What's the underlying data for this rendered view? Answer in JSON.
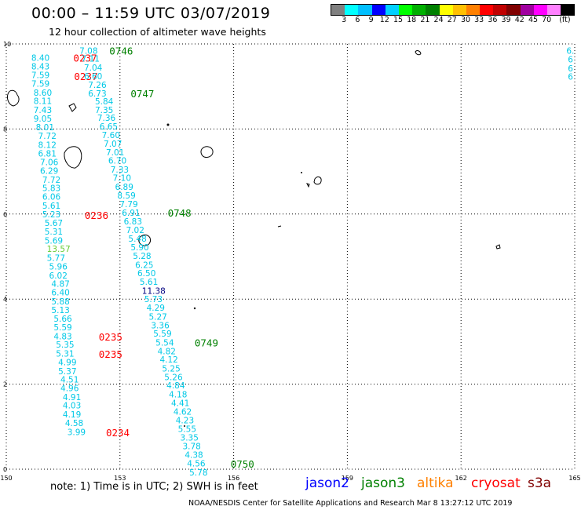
{
  "header": {
    "title": "00:00 – 11:59 UTC 03/07/2019",
    "subtitle": "12 hour collection of altimeter wave heights"
  },
  "legend": {
    "colors": [
      "#808080",
      "#00ffff",
      "#00bfff",
      "#0000ff",
      "#00d0ff",
      "#00ff00",
      "#00b000",
      "#008000",
      "#ffff00",
      "#ffc000",
      "#ff8000",
      "#ff0000",
      "#c00000",
      "#800000",
      "#a000a0",
      "#ff00ff",
      "#ff80ff",
      "#000000"
    ],
    "labels": [
      "3",
      "6",
      "9",
      "12",
      "15",
      "18",
      "21",
      "24",
      "27",
      "30",
      "33",
      "36",
      "39",
      "42",
      "45",
      "70",
      "(ft)"
    ]
  },
  "chart_data": {
    "type": "scatter",
    "xlim": [
      150,
      165
    ],
    "ylim": [
      0,
      10
    ],
    "x_ticks": [
      "150",
      "153",
      "156",
      "159",
      "162",
      "165"
    ],
    "y_ticks": [
      "0",
      "2",
      "4",
      "6",
      "8",
      "10"
    ],
    "grid": true,
    "tracks": [
      {
        "name": "track-a",
        "points": [
          {
            "x": 150.66,
            "y": 9.68,
            "v": "8.40"
          },
          {
            "x": 150.66,
            "y": 9.47,
            "v": "8.43"
          },
          {
            "x": 150.66,
            "y": 9.27,
            "v": "7.59"
          },
          {
            "x": 150.66,
            "y": 9.07,
            "v": "7.59"
          },
          {
            "x": 150.72,
            "y": 8.86,
            "v": "8.60"
          },
          {
            "x": 150.72,
            "y": 8.66,
            "v": "8.11"
          },
          {
            "x": 150.72,
            "y": 8.45,
            "v": "7.43"
          },
          {
            "x": 150.72,
            "y": 8.25,
            "v": "9.05"
          },
          {
            "x": 150.78,
            "y": 8.04,
            "v": "8.01"
          },
          {
            "x": 150.84,
            "y": 7.84,
            "v": "7.72"
          },
          {
            "x": 150.84,
            "y": 7.63,
            "v": "8.12"
          },
          {
            "x": 150.84,
            "y": 7.43,
            "v": "6.81"
          },
          {
            "x": 150.89,
            "y": 7.22,
            "v": "7.06"
          },
          {
            "x": 150.89,
            "y": 7.02,
            "v": "6.29"
          },
          {
            "x": 150.95,
            "y": 6.81,
            "v": "7.72"
          },
          {
            "x": 150.95,
            "y": 6.61,
            "v": "5.83"
          },
          {
            "x": 150.95,
            "y": 6.41,
            "v": "6.06"
          },
          {
            "x": 150.95,
            "y": 6.2,
            "v": "5.61"
          },
          {
            "x": 150.95,
            "y": 6.0,
            "v": "5.23"
          },
          {
            "x": 151.01,
            "y": 5.79,
            "v": "5.67"
          },
          {
            "x": 151.01,
            "y": 5.59,
            "v": "5.31"
          },
          {
            "x": 151.01,
            "y": 5.38,
            "v": "5.69"
          },
          {
            "x": 151.07,
            "y": 5.18,
            "v": "13.57",
            "c": "#66cc33"
          },
          {
            "x": 151.07,
            "y": 4.97,
            "v": "5.77"
          },
          {
            "x": 151.13,
            "y": 4.77,
            "v": "5.96"
          },
          {
            "x": 151.13,
            "y": 4.56,
            "v": "6.02"
          },
          {
            "x": 151.19,
            "y": 4.36,
            "v": "4.87"
          },
          {
            "x": 151.19,
            "y": 4.16,
            "v": "6.40"
          },
          {
            "x": 151.19,
            "y": 3.95,
            "v": "5.88"
          },
          {
            "x": 151.19,
            "y": 3.75,
            "v": "5.13"
          },
          {
            "x": 151.25,
            "y": 3.54,
            "v": "5.66"
          },
          {
            "x": 151.25,
            "y": 3.34,
            "v": "5.59"
          },
          {
            "x": 151.25,
            "y": 3.13,
            "v": "4.83"
          },
          {
            "x": 151.31,
            "y": 2.93,
            "v": "5.35"
          },
          {
            "x": 151.31,
            "y": 2.72,
            "v": "5.31"
          },
          {
            "x": 151.37,
            "y": 2.52,
            "v": "4.99"
          },
          {
            "x": 151.37,
            "y": 2.31,
            "v": "5.37"
          },
          {
            "x": 151.43,
            "y": 2.11,
            "v": "4.51"
          },
          {
            "x": 151.43,
            "y": 1.91,
            "v": "4.96"
          },
          {
            "x": 151.49,
            "y": 1.7,
            "v": "4.91"
          },
          {
            "x": 151.49,
            "y": 1.5,
            "v": "4.03"
          },
          {
            "x": 151.49,
            "y": 1.29,
            "v": "4.19"
          },
          {
            "x": 151.55,
            "y": 1.09,
            "v": "4.58"
          },
          {
            "x": 151.61,
            "y": 0.88,
            "v": "3.99"
          }
        ],
        "times": [
          {
            "x": 151.77,
            "y": 9.68,
            "v": "0237"
          },
          {
            "x": 151.79,
            "y": 9.24,
            "v": "0237"
          },
          {
            "x": 152.07,
            "y": 5.98,
            "v": "0236"
          },
          {
            "x": 152.44,
            "y": 3.12,
            "v": "0235"
          },
          {
            "x": 152.44,
            "y": 2.71,
            "v": "0235"
          },
          {
            "x": 152.63,
            "y": 0.87,
            "v": "0234"
          }
        ]
      },
      {
        "name": "track-b",
        "points": [
          {
            "x": 151.93,
            "y": 9.84,
            "v": "7.08"
          },
          {
            "x": 151.98,
            "y": 9.66,
            "v": "7.11"
          },
          {
            "x": 152.05,
            "y": 9.45,
            "v": "7.04"
          },
          {
            "x": 152.05,
            "y": 9.24,
            "v": "6.60"
          },
          {
            "x": 152.16,
            "y": 9.04,
            "v": "7.26"
          },
          {
            "x": 152.16,
            "y": 8.84,
            "v": "6.73"
          },
          {
            "x": 152.34,
            "y": 8.65,
            "v": "5.84"
          },
          {
            "x": 152.34,
            "y": 8.45,
            "v": "7.35"
          },
          {
            "x": 152.4,
            "y": 8.27,
            "v": "7.36"
          },
          {
            "x": 152.46,
            "y": 8.06,
            "v": "6.65"
          },
          {
            "x": 152.52,
            "y": 7.86,
            "v": "7.60"
          },
          {
            "x": 152.57,
            "y": 7.66,
            "v": "7.07"
          },
          {
            "x": 152.63,
            "y": 7.45,
            "v": "7.01"
          },
          {
            "x": 152.69,
            "y": 7.26,
            "v": "6.70"
          },
          {
            "x": 152.75,
            "y": 7.05,
            "v": "7.33"
          },
          {
            "x": 152.81,
            "y": 6.85,
            "v": "7.10"
          },
          {
            "x": 152.87,
            "y": 6.64,
            "v": "6.89"
          },
          {
            "x": 152.93,
            "y": 6.44,
            "v": "8.59"
          },
          {
            "x": 152.99,
            "y": 6.24,
            "v": "7.79"
          },
          {
            "x": 153.05,
            "y": 6.03,
            "v": "6.91"
          },
          {
            "x": 153.1,
            "y": 5.83,
            "v": "6.83"
          },
          {
            "x": 153.16,
            "y": 5.63,
            "v": "7.02"
          },
          {
            "x": 153.22,
            "y": 5.42,
            "v": "5.48"
          },
          {
            "x": 153.28,
            "y": 5.22,
            "v": "5.90"
          },
          {
            "x": 153.34,
            "y": 5.02,
            "v": "5.28"
          },
          {
            "x": 153.4,
            "y": 4.81,
            "v": "6.25"
          },
          {
            "x": 153.46,
            "y": 4.61,
            "v": "6.50"
          },
          {
            "x": 153.52,
            "y": 4.41,
            "v": "5.61"
          },
          {
            "x": 153.58,
            "y": 4.2,
            "v": "11.38",
            "c": "#000080"
          },
          {
            "x": 153.64,
            "y": 4.0,
            "v": "5.73"
          },
          {
            "x": 153.7,
            "y": 3.8,
            "v": "4.29"
          },
          {
            "x": 153.76,
            "y": 3.59,
            "v": "5.27"
          },
          {
            "x": 153.82,
            "y": 3.39,
            "v": "3.36"
          },
          {
            "x": 153.88,
            "y": 3.19,
            "v": "5.59"
          },
          {
            "x": 153.94,
            "y": 2.98,
            "v": "5.54"
          },
          {
            "x": 153.99,
            "y": 2.78,
            "v": "4.82"
          },
          {
            "x": 154.05,
            "y": 2.58,
            "v": "4.12"
          },
          {
            "x": 154.11,
            "y": 2.37,
            "v": "5.25"
          },
          {
            "x": 154.17,
            "y": 2.17,
            "v": "5.26"
          },
          {
            "x": 154.23,
            "y": 1.97,
            "v": "4.84"
          },
          {
            "x": 154.29,
            "y": 1.76,
            "v": "4.18"
          },
          {
            "x": 154.35,
            "y": 1.56,
            "v": "4.41"
          },
          {
            "x": 154.41,
            "y": 1.36,
            "v": "4.62"
          },
          {
            "x": 154.47,
            "y": 1.15,
            "v": "4.23"
          },
          {
            "x": 154.53,
            "y": 0.95,
            "v": "5.55"
          },
          {
            "x": 154.59,
            "y": 0.75,
            "v": "3.35"
          },
          {
            "x": 154.65,
            "y": 0.54,
            "v": "3.78"
          },
          {
            "x": 154.71,
            "y": 0.34,
            "v": "4.38"
          },
          {
            "x": 154.77,
            "y": 0.14,
            "v": "4.56"
          },
          {
            "x": 154.83,
            "y": -0.07,
            "v": "5.78"
          }
        ],
        "times": [
          {
            "x": 152.72,
            "y": 9.84,
            "v": "0746"
          },
          {
            "x": 153.28,
            "y": 8.84,
            "v": "0747"
          },
          {
            "x": 154.26,
            "y": 6.03,
            "v": "0748"
          },
          {
            "x": 154.97,
            "y": 2.98,
            "v": "0749"
          },
          {
            "x": 155.92,
            "y": 0.13,
            "v": "0750"
          }
        ]
      },
      {
        "name": "track-c",
        "points": [
          {
            "x": 164.78,
            "y": 9.84,
            "v": "6."
          },
          {
            "x": 164.82,
            "y": 9.64,
            "v": "6"
          },
          {
            "x": 164.82,
            "y": 9.43,
            "v": "6"
          },
          {
            "x": 164.82,
            "y": 9.23,
            "v": "6"
          }
        ],
        "times": []
      }
    ]
  },
  "colors": {
    "track_value": "#00c8e6",
    "time_track_a": "#ff0000",
    "time_track_b": "#008000",
    "land": "#000000",
    "grid": "#000000"
  },
  "footer": {
    "note": "note:  1) Time is in UTC;  2) SWH is in feet",
    "satellites": [
      {
        "label": "jason2",
        "color": "#0000ff"
      },
      {
        "label": "jason3",
        "color": "#008000"
      },
      {
        "label": "altika",
        "color": "#ff8000"
      },
      {
        "label": "cryosat",
        "color": "#ff0000"
      },
      {
        "label": "s3a",
        "color": "#800000"
      }
    ],
    "credit": "NOAA/NESDIS Center for Satellite Applications and Research    Mar  8 13:27:12 UTC 2019"
  }
}
